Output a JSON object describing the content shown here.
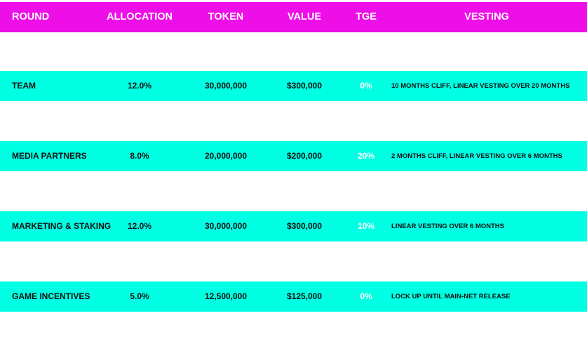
{
  "colors": {
    "header_bg": "#ee0ee8",
    "row_bg": "#00ffe3",
    "header_text": "#ffffff",
    "row_text": "#111111",
    "tge_text": "#ffffff"
  },
  "table": {
    "headers": {
      "round": "ROUND",
      "allocation": "ALLOCATION",
      "token": "TOKEN",
      "value": "VALUE",
      "tge": "TGE",
      "vesting": "VESTING"
    },
    "rows": [
      {
        "round": "TEAM",
        "allocation": "12.0%",
        "token": "30,000,000",
        "value": "$300,000",
        "tge": "0%",
        "vesting": "10 MONTHS CLIFF, LINEAR VESTING OVER 20 MONTHS"
      },
      {
        "round": "MEDIA PARTNERS",
        "allocation": "8.0%",
        "token": "20,000,000",
        "value": "$200,000",
        "tge": "20%",
        "vesting": "2 MONTHS CLIFF, LINEAR VESTING OVER 6 MONTHS"
      },
      {
        "round": "MARKETING & STAKING",
        "allocation": "12.0%",
        "token": "30,000,000",
        "value": "$300,000",
        "tge": "10%",
        "vesting": "LINEAR VESTING OVER 6 MONTHS"
      },
      {
        "round": "GAME INCENTIVES",
        "allocation": "5.0%",
        "token": "12,500,000",
        "value": "$125,000",
        "tge": "0%",
        "vesting": "LOCK UP UNTIL MAIN-NET RELEASE"
      }
    ]
  }
}
